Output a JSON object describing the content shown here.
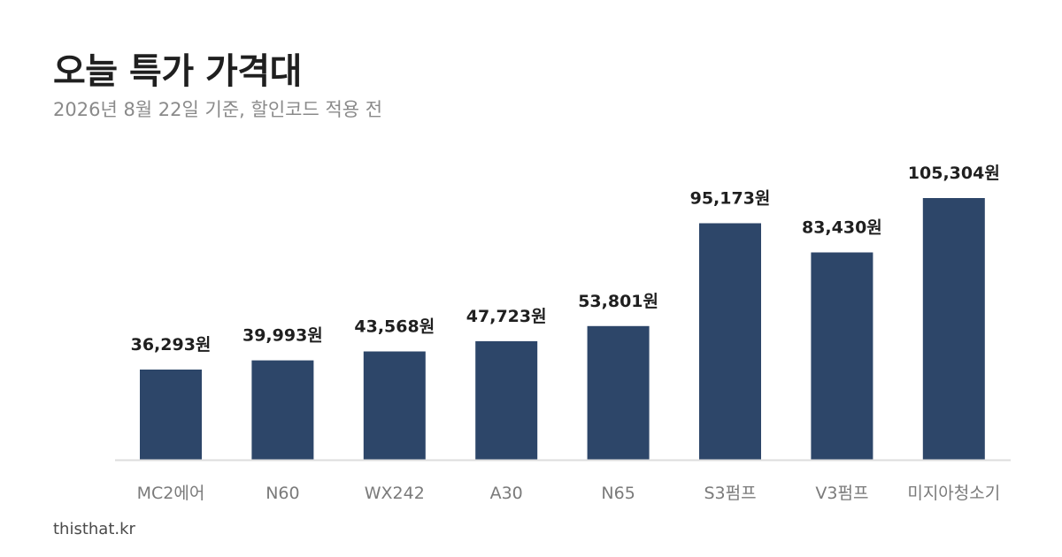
{
  "title": "오늘 특가 가격대",
  "subtitle": "2026년 8월 22일 기준, 할인코드 적용 전",
  "footer": "thisthat.kr",
  "colors": {
    "bar": "#2d4669",
    "baseline": "#dddddd"
  },
  "chart_data": {
    "type": "bar",
    "title": "오늘 특가 가격대",
    "subtitle": "2026년 8월 22일 기준, 할인코드 적용 전",
    "categories": [
      "MC2에어",
      "N60",
      "WX242",
      "A30",
      "N65",
      "S3펌프",
      "V3펌프",
      "미지아청소기"
    ],
    "values": [
      36293,
      39993,
      43568,
      47723,
      53801,
      95173,
      83430,
      105304
    ],
    "labels": [
      "36,293원",
      "39,993원",
      "43,568원",
      "47,723원",
      "53,801원",
      "95,173원",
      "83,430원",
      "105,304원"
    ],
    "unit": "원",
    "xlabel": "",
    "ylabel": "",
    "ylim": [
      0,
      105304
    ],
    "grid": false,
    "legend": "none"
  }
}
